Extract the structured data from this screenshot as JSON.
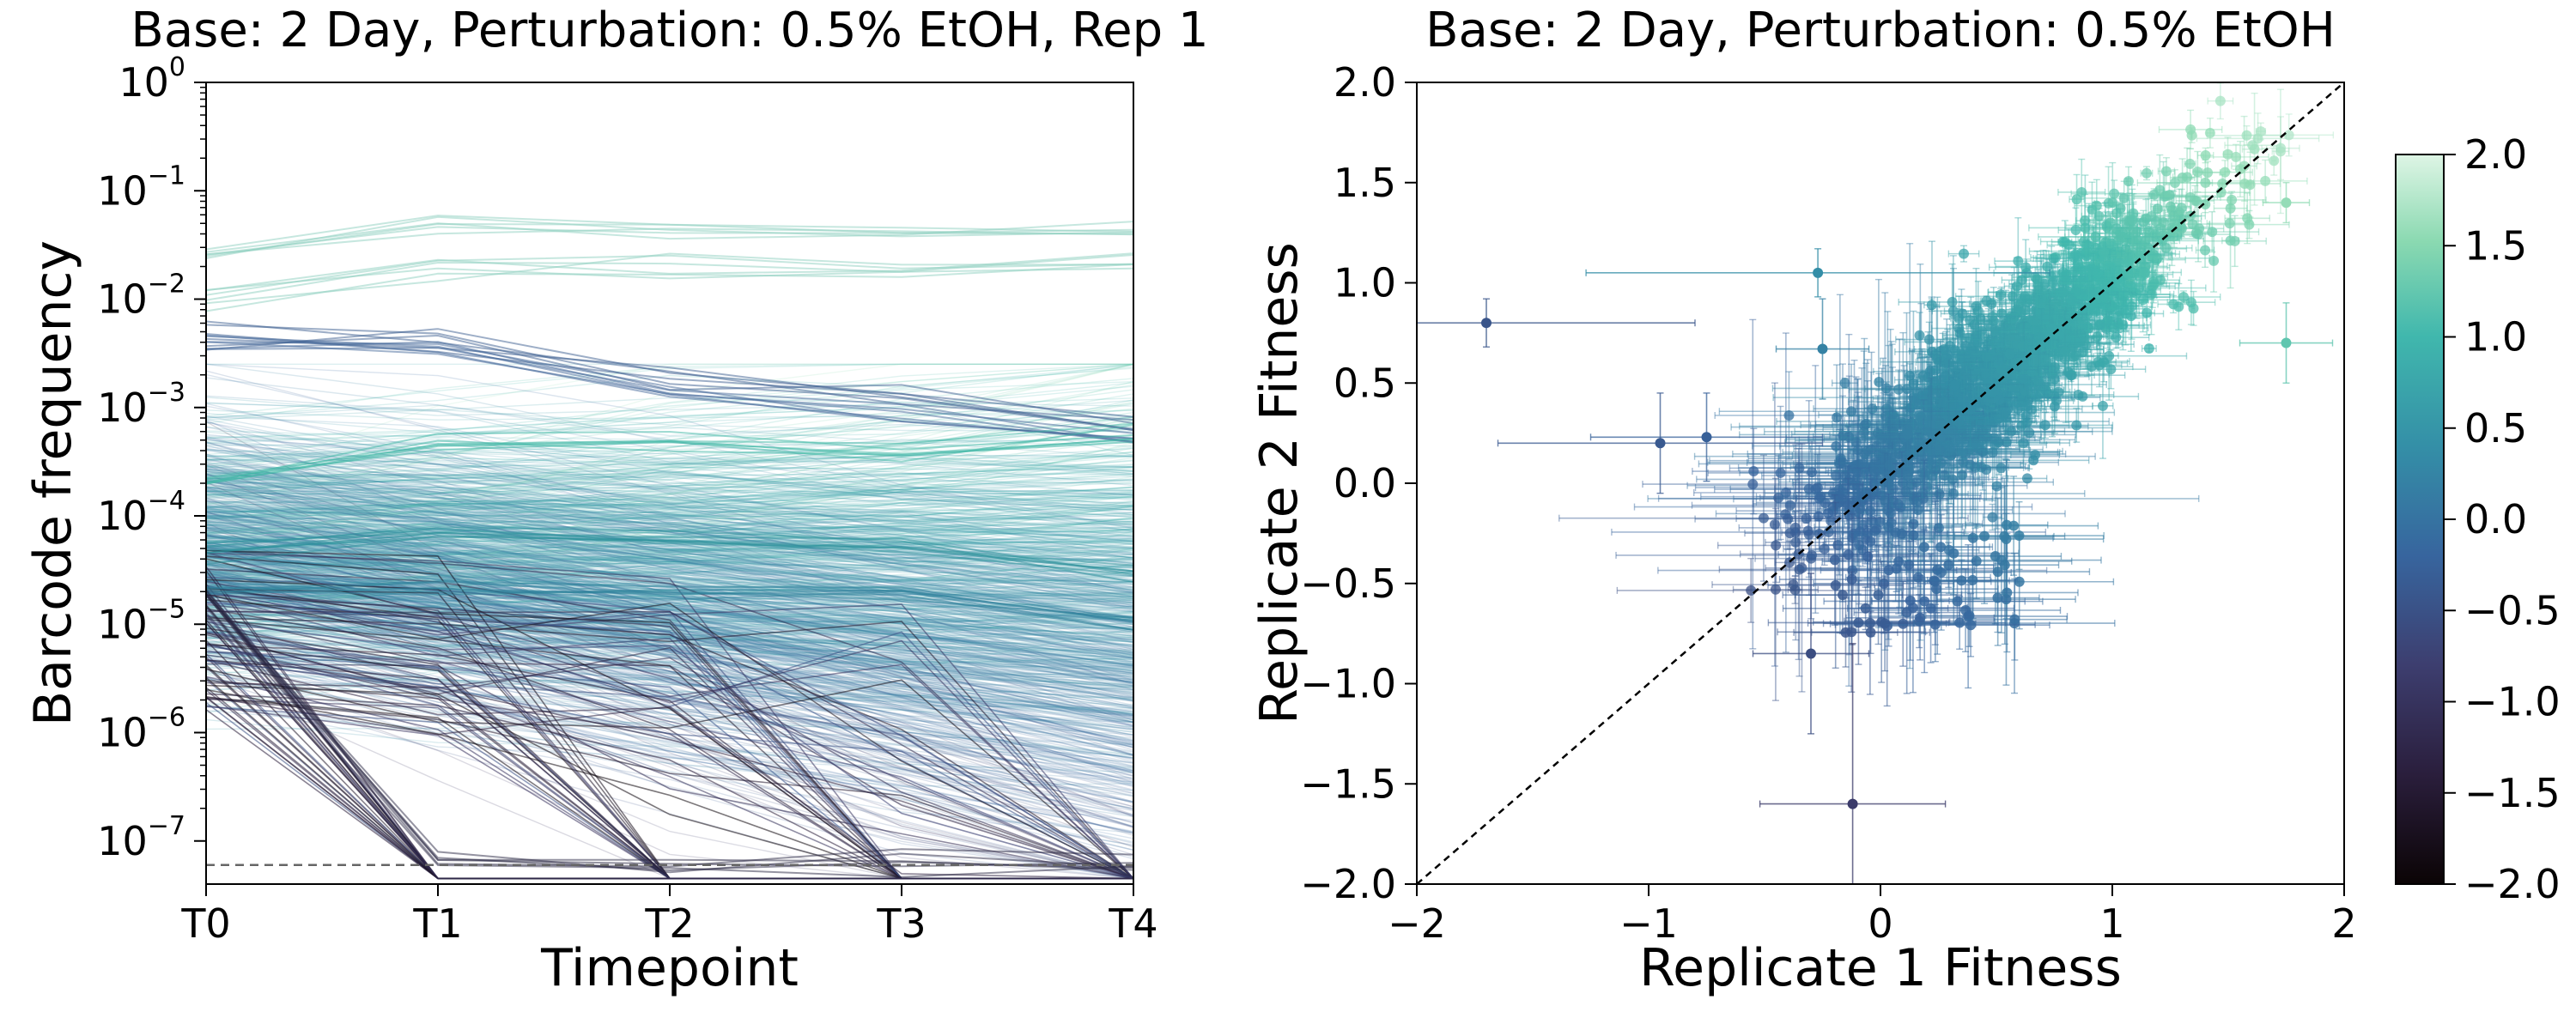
{
  "chart_data": [
    {
      "type": "line",
      "title": "Base: 2 Day, Perturbation: 0.5% EtOH, Rep 1",
      "xlabel": "Timepoint",
      "ylabel": "Barcode frequency",
      "x_categories": [
        "T0",
        "T1",
        "T2",
        "T3",
        "T4"
      ],
      "yscale": "log",
      "ylim": [
        4e-08,
        1
      ],
      "y_ticks": [
        {
          "base": "10",
          "exp": "0",
          "value": 1
        },
        {
          "base": "10",
          "exp": "−1",
          "value": 0.1
        },
        {
          "base": "10",
          "exp": "−2",
          "value": 0.01
        },
        {
          "base": "10",
          "exp": "−3",
          "value": 0.001
        },
        {
          "base": "10",
          "exp": "−4",
          "value": 0.0001
        },
        {
          "base": "10",
          "exp": "−5",
          "value": 1e-05
        },
        {
          "base": "10",
          "exp": "−6",
          "value": 1e-06
        },
        {
          "base": "10",
          "exp": "−7",
          "value": 1e-07
        }
      ],
      "detection_limit_line": 6e-08,
      "series_groups": [
        {
          "description": "high abundance lineages",
          "values": [
            0.025,
            0.05,
            0.045,
            0.04,
            0.045
          ],
          "color": "#8ecfc0"
        },
        {
          "description": "high abundance lineages",
          "values": [
            0.01,
            0.02,
            0.02,
            0.02,
            0.02
          ],
          "color": "#8ecfc0"
        },
        {
          "description": "declining abundant lineages",
          "values": [
            0.005,
            0.0045,
            0.002,
            0.0012,
            0.0007
          ],
          "color": "#3b5d8f"
        },
        {
          "description": "declining abundant lineages",
          "values": [
            0.004,
            0.0035,
            0.0015,
            0.0009,
            0.0005
          ],
          "color": "#44679a"
        },
        {
          "description": "main cloud upper",
          "values": [
            0.0002,
            0.0005,
            0.0005,
            0.0005,
            0.0005
          ],
          "color": "#3fb8a6"
        },
        {
          "description": "main cloud median",
          "values": [
            5e-05,
            7e-05,
            6e-05,
            5e-05,
            3e-05
          ],
          "color": "#2a8f9a"
        },
        {
          "description": "main cloud lower",
          "values": [
            2e-05,
            2e-05,
            2e-05,
            2e-05,
            1e-05
          ],
          "color": "#2b7f9a"
        },
        {
          "description": "extinct lineages",
          "values": [
            2e-05,
            6e-08,
            6e-08,
            6e-08,
            6e-08
          ],
          "color": "#2a2744"
        }
      ]
    },
    {
      "type": "scatter",
      "title": "Base: 2 Day, Perturbation: 0.5% EtOH",
      "xlabel": "Replicate 1 Fitness",
      "ylabel": "Replicate 2 Fitness",
      "xlim": [
        -2,
        2
      ],
      "ylim": [
        -2,
        2
      ],
      "x_ticks": [
        "−2",
        "−1",
        "0",
        "1",
        "2"
      ],
      "y_ticks": [
        "2.0",
        "1.5",
        "1.0",
        "0.5",
        "0.0",
        "−0.5",
        "−1.0",
        "−1.5",
        "−2.0"
      ],
      "diagonal": "y = x (dashed)",
      "highlighted_points": [
        {
          "x": -1.7,
          "y": 0.8,
          "xerr": 0.9,
          "yerr": 0.12
        },
        {
          "x": -0.27,
          "y": 1.05,
          "xerr": 1.0,
          "yerr": 0.12
        },
        {
          "x": -0.25,
          "y": 0.67,
          "xerr": 0.2,
          "yerr": 0.25
        },
        {
          "x": -0.95,
          "y": 0.2,
          "xerr": 0.7,
          "yerr": 0.25
        },
        {
          "x": -0.75,
          "y": 0.23,
          "xerr": 0.5,
          "yerr": 0.22
        },
        {
          "x": -0.12,
          "y": -1.6,
          "xerr": 0.4,
          "yerr": 0.8
        },
        {
          "x": -0.3,
          "y": -0.85,
          "xerr": 0.25,
          "yerr": 0.4
        },
        {
          "x": 1.75,
          "y": 0.7,
          "xerr": 0.2,
          "yerr": 0.2
        },
        {
          "x": 1.75,
          "y": 1.4,
          "xerr": 0.1,
          "yerr": 0.1
        }
      ],
      "colorbar": {
        "vmin": -2.0,
        "vmax": 2.0,
        "ticks": [
          "2.0",
          "1.5",
          "1.0",
          "0.5",
          "0.0",
          "−0.5",
          "−1.0",
          "−1.5",
          "−2.0"
        ],
        "colormap": "mako-like (dark to light teal)"
      }
    }
  ]
}
